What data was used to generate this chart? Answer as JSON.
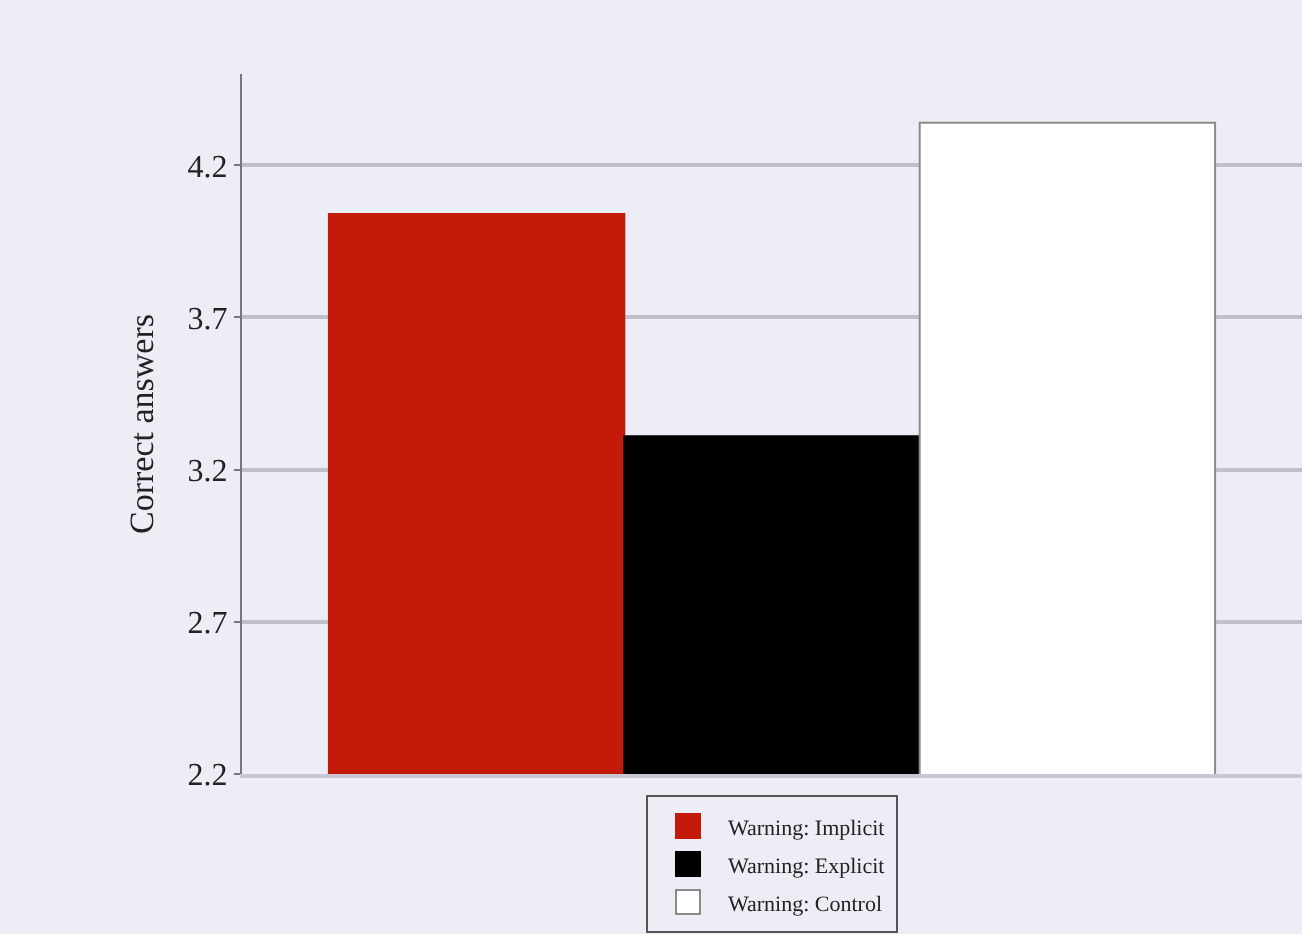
{
  "chart_data": {
    "type": "bar",
    "ylabel": "Correct answers",
    "categories": [
      null
    ],
    "series": [
      {
        "name": "Warning: Implicit",
        "color": "#c41a0a",
        "values": [
          4.04
        ]
      },
      {
        "name": "Warning: Explicit",
        "color": "#000000",
        "values": [
          3.31
        ]
      },
      {
        "name": "Warning: Control",
        "color": "#ffffff",
        "values": [
          4.34
        ]
      }
    ],
    "ylim": [
      2.2,
      4.5
    ],
    "yticks": [
      2.2,
      2.7,
      3.2,
      3.7,
      4.2
    ],
    "grid": "y",
    "legend": "bottom"
  }
}
